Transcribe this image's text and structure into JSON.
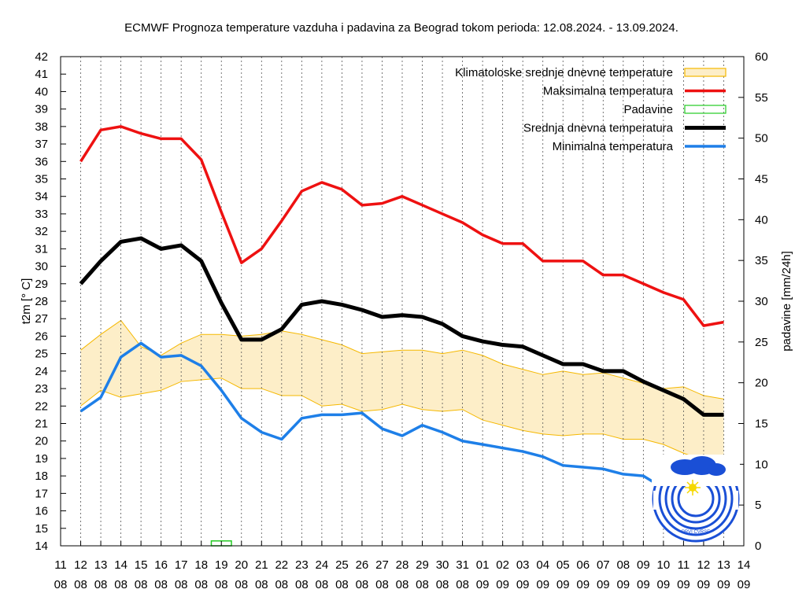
{
  "chart_data": {
    "type": "line",
    "title": "ECMWF Prognoza temperature  vazduha i padavina za Beograd tokom perioda: 12.08.2024. - 13.09.2024.",
    "ylabel": "t2m [° C]",
    "y2label": "padavine [mm/24h]",
    "ylim": [
      14,
      42
    ],
    "y2lim": [
      0,
      60
    ],
    "y_ticks": [
      "14",
      "15",
      "16",
      "17",
      "18",
      "19",
      "20",
      "21",
      "22",
      "23",
      "24",
      "25",
      "26",
      "27",
      "28",
      "29",
      "30",
      "31",
      "32",
      "33",
      "34",
      "35",
      "36",
      "37",
      "38",
      "39",
      "40",
      "41",
      "42"
    ],
    "y2_ticks": [
      "0",
      "5",
      "10",
      "15",
      "20",
      "25",
      "30",
      "35",
      "40",
      "45",
      "50",
      "55",
      "60"
    ],
    "x_ticks": [
      {
        "day": "11",
        "month": "08"
      },
      {
        "day": "12",
        "month": "08"
      },
      {
        "day": "13",
        "month": "08"
      },
      {
        "day": "14",
        "month": "08"
      },
      {
        "day": "15",
        "month": "08"
      },
      {
        "day": "16",
        "month": "08"
      },
      {
        "day": "17",
        "month": "08"
      },
      {
        "day": "18",
        "month": "08"
      },
      {
        "day": "19",
        "month": "08"
      },
      {
        "day": "20",
        "month": "08"
      },
      {
        "day": "21",
        "month": "08"
      },
      {
        "day": "22",
        "month": "08"
      },
      {
        "day": "23",
        "month": "08"
      },
      {
        "day": "24",
        "month": "08"
      },
      {
        "day": "25",
        "month": "08"
      },
      {
        "day": "26",
        "month": "08"
      },
      {
        "day": "27",
        "month": "08"
      },
      {
        "day": "28",
        "month": "08"
      },
      {
        "day": "29",
        "month": "08"
      },
      {
        "day": "30",
        "month": "08"
      },
      {
        "day": "31",
        "month": "08"
      },
      {
        "day": "01",
        "month": "09"
      },
      {
        "day": "02",
        "month": "09"
      },
      {
        "day": "03",
        "month": "09"
      },
      {
        "day": "04",
        "month": "09"
      },
      {
        "day": "05",
        "month": "09"
      },
      {
        "day": "06",
        "month": "09"
      },
      {
        "day": "07",
        "month": "09"
      },
      {
        "day": "08",
        "month": "09"
      },
      {
        "day": "09",
        "month": "09"
      },
      {
        "day": "10",
        "month": "09"
      },
      {
        "day": "11",
        "month": "09"
      },
      {
        "day": "12",
        "month": "09"
      },
      {
        "day": "13",
        "month": "09"
      },
      {
        "day": "14",
        "month": "09"
      }
    ],
    "dates": [
      "12.08",
      "13.08",
      "14.08",
      "15.08",
      "16.08",
      "17.08",
      "18.08",
      "19.08",
      "20.08",
      "21.08",
      "22.08",
      "23.08",
      "24.08",
      "25.08",
      "26.08",
      "27.08",
      "28.08",
      "29.08",
      "30.08",
      "31.08",
      "01.09",
      "02.09",
      "03.09",
      "04.09",
      "05.09",
      "06.09",
      "07.09",
      "08.09",
      "09.09",
      "10.09",
      "11.09",
      "12.09",
      "13.09"
    ],
    "legend_position": "top-right",
    "grid_x": true,
    "climate_band": {
      "name": "Klimatoloske srednje dnevne temperature",
      "color": "#fdeec8",
      "edge_color": "#f5b800",
      "upper": [
        25.2,
        26.1,
        26.9,
        25.4,
        24.9,
        25.6,
        26.1,
        26.1,
        26.0,
        26.1,
        26.3,
        26.1,
        25.8,
        25.5,
        25.0,
        25.1,
        25.2,
        25.2,
        25.0,
        25.2,
        24.9,
        24.4,
        24.1,
        23.8,
        24.0,
        23.8,
        23.9,
        23.6,
        23.3,
        23.0,
        23.1,
        22.6,
        22.4
      ],
      "lower": [
        22.0,
        22.9,
        22.5,
        22.7,
        22.9,
        23.4,
        23.5,
        23.6,
        23.0,
        23.0,
        22.6,
        22.6,
        22.0,
        22.1,
        21.7,
        21.8,
        22.1,
        21.8,
        21.7,
        21.8,
        21.2,
        20.9,
        20.6,
        20.4,
        20.3,
        20.4,
        20.4,
        20.1,
        20.1,
        19.8,
        19.3,
        18.9,
        18.9
      ]
    },
    "series": [
      {
        "name": "Maksimalna temperatura",
        "color": "#ee1111",
        "values": [
          36.0,
          37.8,
          38.0,
          37.6,
          37.3,
          37.3,
          36.1,
          33.1,
          30.2,
          31.0,
          32.6,
          34.3,
          34.8,
          34.4,
          33.5,
          33.6,
          34.0,
          33.5,
          33.0,
          32.5,
          31.8,
          31.3,
          31.3,
          30.3,
          30.3,
          30.3,
          29.5,
          29.5,
          29.0,
          28.5,
          28.1,
          26.6,
          26.8
        ]
      },
      {
        "name": "Srednja dnevna temperatura",
        "color": "#000000",
        "values": [
          29.0,
          30.3,
          31.4,
          31.6,
          31.0,
          31.2,
          30.3,
          27.9,
          25.8,
          25.8,
          26.4,
          27.8,
          28.0,
          27.8,
          27.5,
          27.1,
          27.2,
          27.1,
          26.7,
          26.0,
          25.7,
          25.5,
          25.4,
          24.9,
          24.4,
          24.4,
          24.0,
          24.0,
          23.4,
          22.9,
          22.4,
          21.5,
          21.5
        ]
      },
      {
        "name": "Minimalna temperatura",
        "color": "#1e7fe8",
        "values": [
          21.7,
          22.5,
          24.8,
          25.6,
          24.8,
          24.9,
          24.3,
          22.9,
          21.3,
          20.5,
          20.1,
          21.3,
          21.5,
          21.5,
          21.6,
          20.7,
          20.3,
          20.9,
          20.5,
          20.0,
          19.8,
          19.6,
          19.4,
          19.1,
          18.6,
          18.5,
          18.4,
          18.1,
          18.0,
          17.3,
          16.9,
          16.5,
          16.1
        ]
      }
    ],
    "precipitation": {
      "name": "Padavine",
      "color": "#22cc22",
      "values": [
        0,
        0,
        0,
        0,
        0,
        0,
        0,
        0.6,
        0,
        0,
        0,
        0,
        0,
        0,
        0,
        0,
        0,
        0,
        0,
        0,
        0,
        0,
        0,
        0,
        0,
        0,
        0,
        0,
        0,
        0,
        0,
        0,
        0
      ]
    },
    "logo_text": "PRVI CVRSE"
  }
}
